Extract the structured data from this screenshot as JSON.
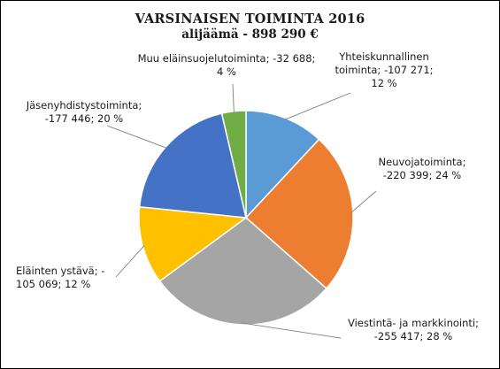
{
  "chart_data": {
    "type": "pie",
    "title": "VARSINAISEN TOIMINTA 2016",
    "subtitle": "alijäämä - 898 290 €",
    "start_angle_deg": 0,
    "direction": "clockwise",
    "slices": [
      {
        "label": "Yhteiskunnallinen toiminta",
        "value": -107271,
        "percent": 12,
        "color": "#5B9BD5",
        "text_lines": [
          "Yhteiskunnallinen",
          "toiminta; -107 271;",
          "12 %"
        ]
      },
      {
        "label": "Neuvojatoiminta",
        "value": -220399,
        "percent": 24,
        "color": "#ED7D31",
        "text_lines": [
          "Neuvojatoiminta;",
          "-220 399; 24 %"
        ]
      },
      {
        "label": "Viestintä- ja markkinointi",
        "value": -255417,
        "percent": 28,
        "color": "#A5A5A5",
        "text_lines": [
          "Viestintä- ja markkinointi;",
          "-255 417; 28 %"
        ]
      },
      {
        "label": "Eläinten ystävä",
        "value": -105069,
        "percent": 12,
        "color": "#FFC000",
        "text_lines": [
          "Eläinten ystävä; -",
          "105 069; 12 %"
        ]
      },
      {
        "label": "Jäsenyhdistystoiminta",
        "value": -177446,
        "percent": 20,
        "color": "#4472C4",
        "text_lines": [
          "Jäsenyhdistystoiminta;",
          "-177 446; 20 %"
        ]
      },
      {
        "label": "Muu eläinsuojelutoiminta",
        "value": -32688,
        "percent": 4,
        "color": "#70AD47",
        "text_lines": [
          "Muu eläinsuojelutoiminta; -32 688;",
          "4 %"
        ]
      }
    ],
    "legend": "none",
    "data_labels": "outside with leader lines"
  }
}
